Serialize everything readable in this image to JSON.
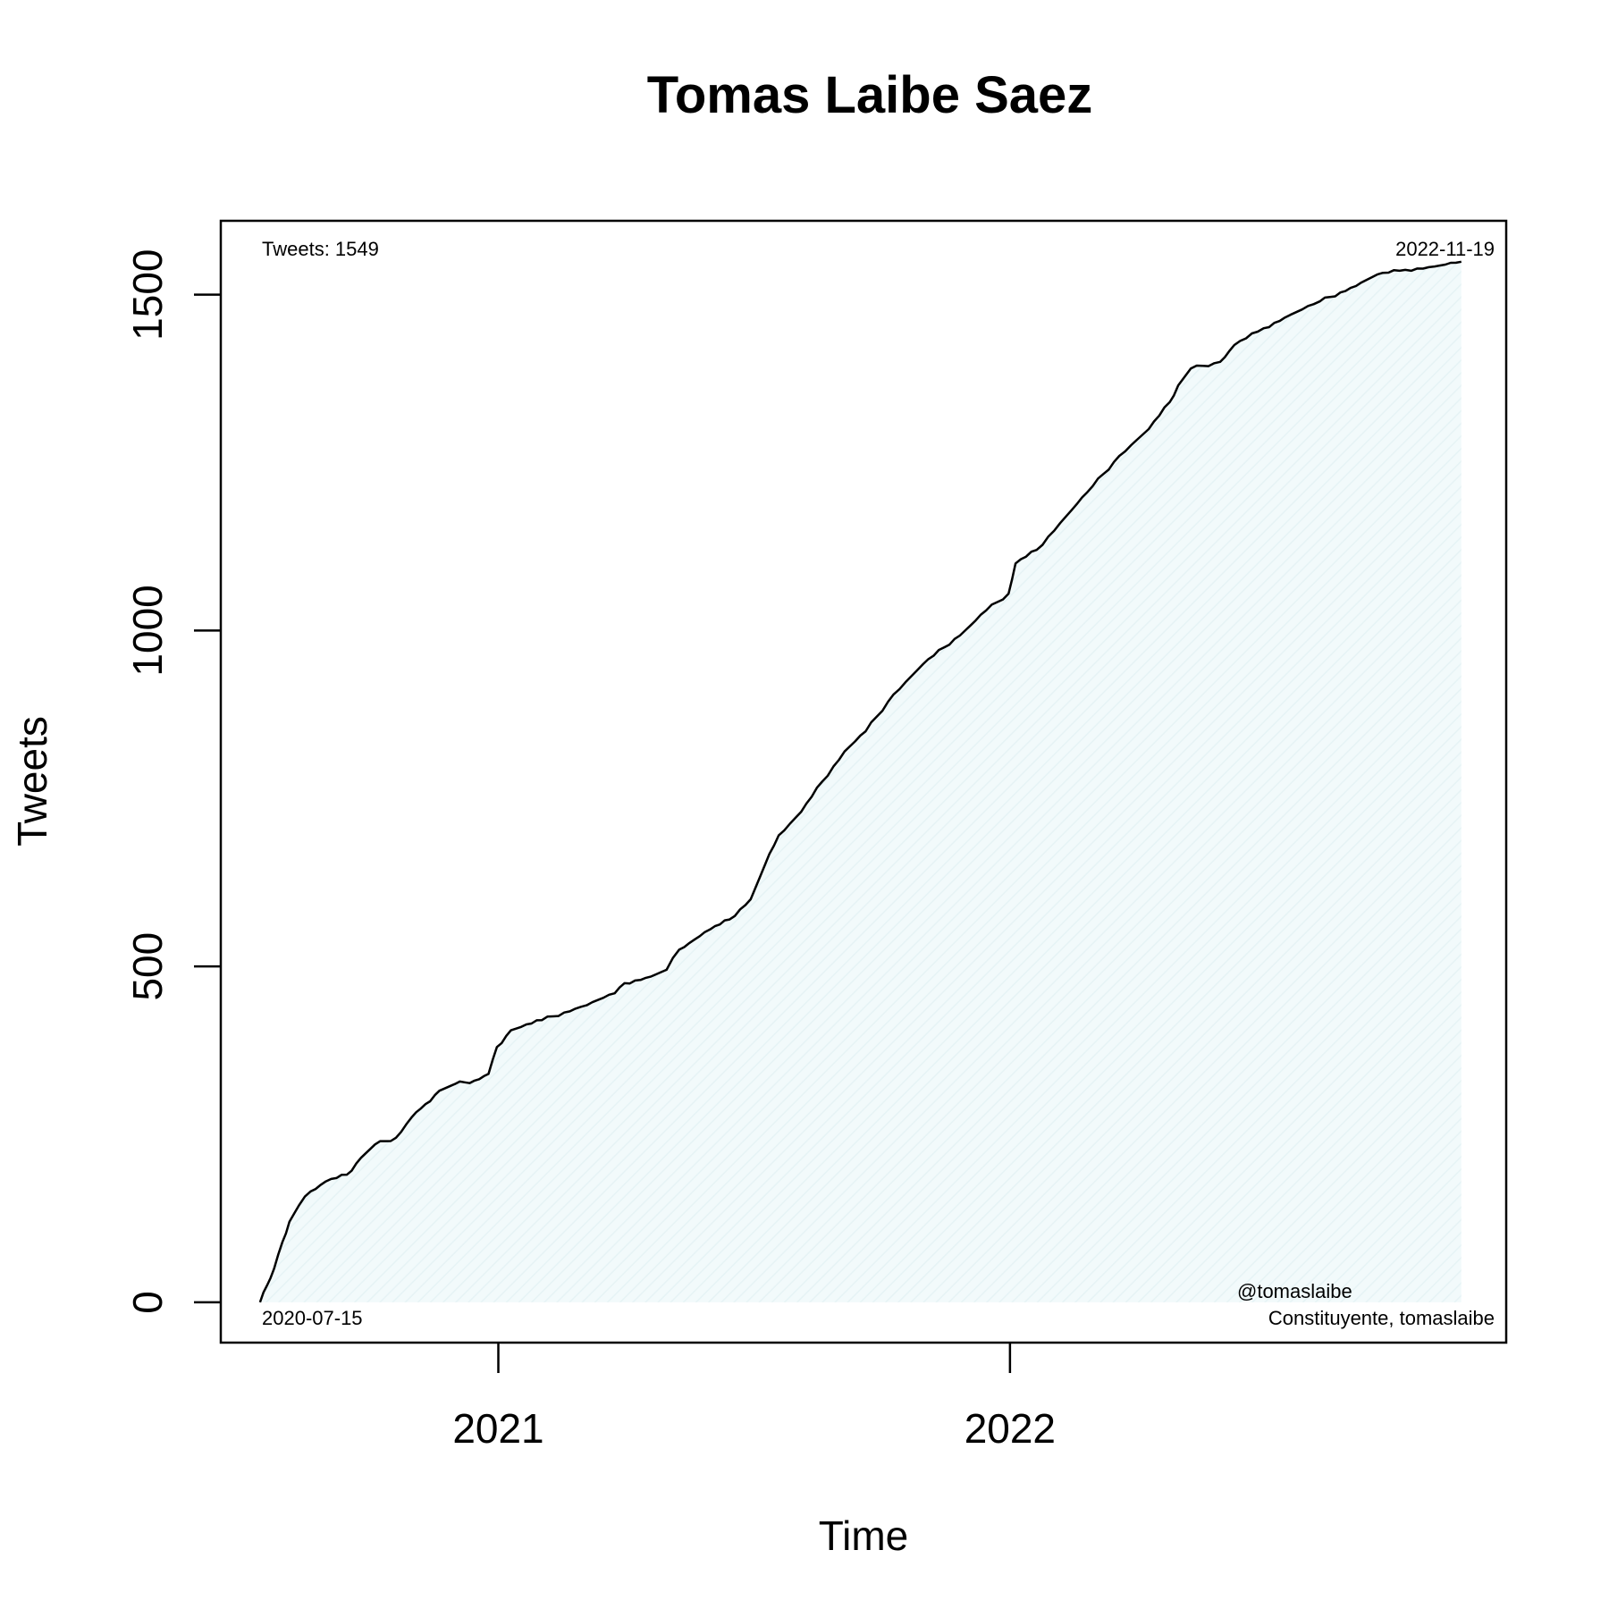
{
  "chart_data": {
    "type": "area",
    "title": "Tomas Laibe Saez",
    "xlabel": "Time",
    "ylabel": "Tweets",
    "x_range": [
      "2020-06-17",
      "2022-12-21"
    ],
    "ylim": [
      -60,
      1610
    ],
    "x_ticks": [
      {
        "date": "2021-01-01",
        "label": "2021"
      },
      {
        "date": "2022-01-01",
        "label": "2022"
      }
    ],
    "y_ticks": [
      {
        "value": 0,
        "label": "0"
      },
      {
        "value": 500,
        "label": "500"
      },
      {
        "value": 1000,
        "label": "1000"
      },
      {
        "value": 1500,
        "label": "1500"
      }
    ],
    "annotations": {
      "top_left": "Tweets: 1549",
      "top_right": "2022-11-19",
      "bottom_left": "2020-07-15",
      "bottom_right_line1": "@tomaslaibe",
      "bottom_right_line2": "Constituyente, tomaslaibe"
    },
    "fill_color": "#e6f3f5",
    "line_color": "#000000",
    "grid": false,
    "series": [
      {
        "points": [
          [
            "2020-07-15",
            0
          ],
          [
            "2020-07-20",
            25
          ],
          [
            "2020-07-25",
            50
          ],
          [
            "2020-07-31",
            90
          ],
          [
            "2020-08-05",
            120
          ],
          [
            "2020-08-12",
            145
          ],
          [
            "2020-08-20",
            165
          ],
          [
            "2020-08-31",
            180
          ],
          [
            "2020-09-15",
            190
          ],
          [
            "2020-09-25",
            215
          ],
          [
            "2020-10-05",
            235
          ],
          [
            "2020-10-20",
            245
          ],
          [
            "2020-10-31",
            275
          ],
          [
            "2020-11-10",
            295
          ],
          [
            "2020-11-20",
            315
          ],
          [
            "2020-12-01",
            325
          ],
          [
            "2020-12-15",
            330
          ],
          [
            "2020-12-25",
            340
          ],
          [
            "2020-12-31",
            380
          ],
          [
            "2021-01-10",
            405
          ],
          [
            "2021-02-01",
            420
          ],
          [
            "2021-03-01",
            440
          ],
          [
            "2021-03-25",
            460
          ],
          [
            "2021-04-01",
            475
          ],
          [
            "2021-04-20",
            485
          ],
          [
            "2021-05-01",
            495
          ],
          [
            "2021-05-10",
            525
          ],
          [
            "2021-06-01",
            555
          ],
          [
            "2021-06-15",
            570
          ],
          [
            "2021-06-30",
            600
          ],
          [
            "2021-07-10",
            650
          ],
          [
            "2021-07-20",
            695
          ],
          [
            "2021-08-05",
            730
          ],
          [
            "2021-08-20",
            775
          ],
          [
            "2021-09-05",
            820
          ],
          [
            "2021-09-20",
            850
          ],
          [
            "2021-10-10",
            905
          ],
          [
            "2021-10-31",
            950
          ],
          [
            "2021-11-15",
            975
          ],
          [
            "2021-11-30",
            1000
          ],
          [
            "2021-12-15",
            1030
          ],
          [
            "2021-12-31",
            1055
          ],
          [
            "2022-01-05",
            1100
          ],
          [
            "2022-01-20",
            1120
          ],
          [
            "2022-02-10",
            1170
          ],
          [
            "2022-03-01",
            1215
          ],
          [
            "2022-03-20",
            1260
          ],
          [
            "2022-04-10",
            1300
          ],
          [
            "2022-04-25",
            1340
          ],
          [
            "2022-05-01",
            1365
          ],
          [
            "2022-05-10",
            1390
          ],
          [
            "2022-05-31",
            1400
          ],
          [
            "2022-06-10",
            1425
          ],
          [
            "2022-07-01",
            1450
          ],
          [
            "2022-07-20",
            1470
          ],
          [
            "2022-08-10",
            1490
          ],
          [
            "2022-09-01",
            1510
          ],
          [
            "2022-09-20",
            1530
          ],
          [
            "2022-10-10",
            1537
          ],
          [
            "2022-10-31",
            1542
          ],
          [
            "2022-11-19",
            1549
          ]
        ]
      }
    ]
  }
}
